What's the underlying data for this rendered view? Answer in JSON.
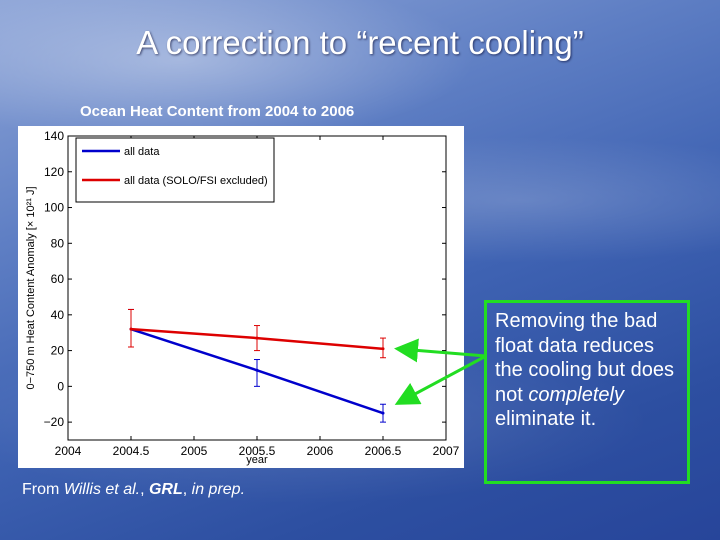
{
  "slide": {
    "title": "A correction to “recent cooling”",
    "source_prefix": "From ",
    "source_italic": "Willis et al.",
    "source_mid": ", ",
    "source_bold": "GRL",
    "source_suffix": ", ",
    "source_italic2": "in prep."
  },
  "callout": {
    "text_before": "Removing the bad float data reduces the cooling but does not ",
    "text_italic": "completely",
    "text_after": " eliminate it.",
    "border_color": "#22dd22"
  },
  "chart_data": {
    "type": "line",
    "title": "Ocean Heat Content from 2004 to 2006",
    "xlabel": "year",
    "ylabel": "0−750 m Heat Content Anomaly [× 10²¹ J]",
    "xlim": [
      2004,
      2007
    ],
    "ylim": [
      -30,
      140
    ],
    "xticks": [
      "2004",
      "2004.5",
      "2005",
      "2005.5",
      "2006",
      "2006.5",
      "2007"
    ],
    "yticks": [
      "140",
      "120",
      "100",
      "80",
      "60",
      "40",
      "20",
      "0",
      "−20"
    ],
    "legend_position": "top-left",
    "series": [
      {
        "name": "all data",
        "color": "#0000cc",
        "x": [
          2004.5,
          2005.5,
          2006.5
        ],
        "y": [
          32,
          9,
          -15
        ],
        "err_low": [
          22,
          0,
          -20
        ],
        "err_high": [
          43,
          15,
          -10
        ]
      },
      {
        "name": "all data (SOLO/FSI excluded)",
        "color": "#dd0000",
        "x": [
          2004.5,
          2005.5,
          2006.5
        ],
        "y": [
          32,
          27,
          21
        ],
        "err_low": [
          22,
          20,
          16
        ],
        "err_high": [
          43,
          34,
          27
        ]
      }
    ]
  }
}
